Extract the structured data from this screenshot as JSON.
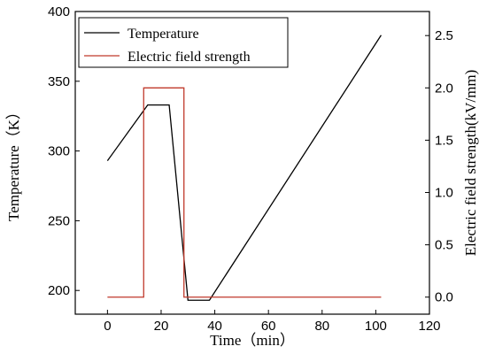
{
  "chart_data": {
    "type": "line",
    "xlabel": "Time（min）",
    "ylabel_left": "Temperature（K）",
    "ylabel_right": "Electric field strength(kV/mm)",
    "x_ticks": [
      "0",
      "20",
      "40",
      "60",
      "80",
      "100",
      "120"
    ],
    "y_left_ticks": [
      "200",
      "250",
      "300",
      "350",
      "400"
    ],
    "y_right_ticks": [
      "0.0",
      "0.5",
      "1.0",
      "1.5",
      "2.0",
      "2.5"
    ],
    "xlim": [
      -12,
      120
    ],
    "ylim_left": [
      183,
      400
    ],
    "ylim_right": [
      -0.163,
      2.73
    ],
    "grid": false,
    "legend_position": "top-left",
    "series": [
      {
        "name": "Temperature",
        "axis": "left",
        "color": "#000000",
        "x": [
          0,
          15,
          23,
          30,
          38,
          102
        ],
        "y": [
          293,
          333,
          333,
          193,
          193,
          383
        ]
      },
      {
        "name": "Electric field strength",
        "axis": "right",
        "color": "#c0392b",
        "x": [
          0,
          13.5,
          13.5,
          28.5,
          28.5,
          102
        ],
        "y": [
          0,
          0,
          2.0,
          2.0,
          0,
          0
        ]
      }
    ]
  }
}
